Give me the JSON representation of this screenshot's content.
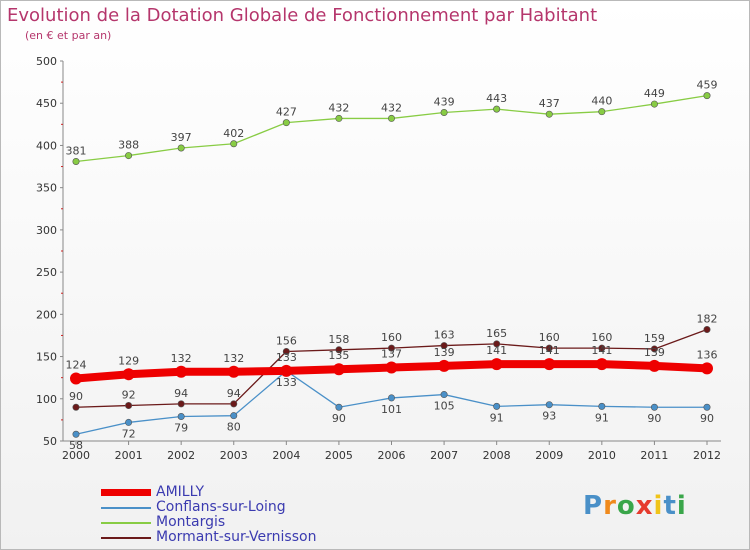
{
  "header": {
    "title": "Evolution de la Dotation Globale de Fonctionnement par Habitant",
    "subtitle": "(en € et par an)"
  },
  "logo": {
    "text": "Proxiti",
    "colors": [
      "#4a90c8",
      "#f08a1c",
      "#3aa64a",
      "#e63b2e",
      "#f0c419",
      "#4a90c8",
      "#3aa64a"
    ]
  },
  "chart_data": {
    "type": "line",
    "title": "Evolution de la Dotation Globale de Fonctionnement par Habitant",
    "subtitle": "(en € et par an)",
    "x": [
      "2000",
      "2001",
      "2002",
      "2003",
      "2004",
      "2005",
      "2006",
      "2007",
      "2008",
      "2009",
      "2010",
      "2011",
      "2012"
    ],
    "ylim": [
      50,
      500
    ],
    "yticks": [
      50,
      100,
      150,
      200,
      250,
      300,
      350,
      400,
      450,
      500
    ],
    "grid": false,
    "legend_position": "bottom-left",
    "series": [
      {
        "name": "AMILLY",
        "color": "#ee0000",
        "values": [
          124,
          129,
          132,
          132,
          133,
          135,
          137,
          139,
          141,
          141,
          141,
          139,
          136
        ]
      },
      {
        "name": "Conflans-sur-Loing",
        "color": "#4a90c8",
        "values": [
          58,
          72,
          79,
          80,
          133,
          90,
          101,
          105,
          91,
          93,
          91,
          90,
          90
        ]
      },
      {
        "name": "Montargis",
        "color": "#88cc44",
        "values": [
          381,
          388,
          397,
          402,
          427,
          432,
          432,
          439,
          443,
          437,
          440,
          449,
          459
        ]
      },
      {
        "name": "Mormant-sur-Vernisson",
        "color": "#6b1a1a",
        "values": [
          90,
          92,
          94,
          94,
          156,
          158,
          160,
          163,
          165,
          160,
          160,
          159,
          182
        ]
      }
    ]
  }
}
